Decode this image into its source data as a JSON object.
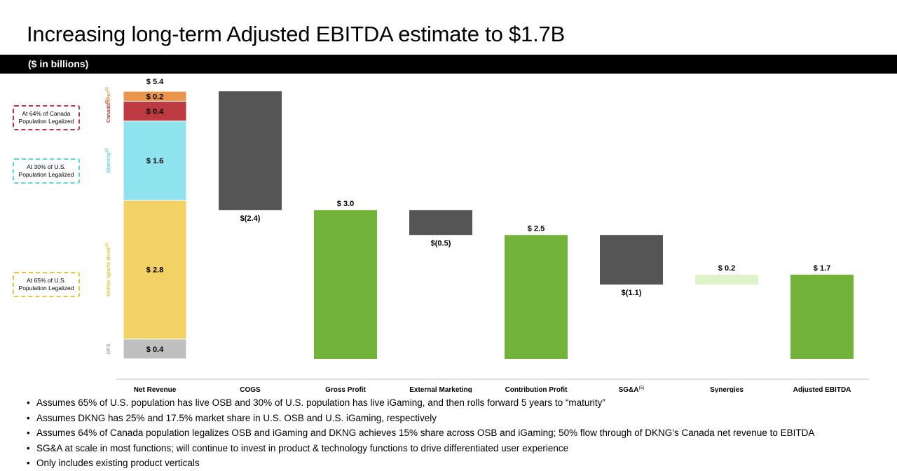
{
  "title": "Increasing long-term Adjusted EBITDA estimate to $1.7B",
  "banner": "($ in billions)",
  "callouts": [
    {
      "text": "At 64% of Canada Population Legalized",
      "color": "#b9373f"
    },
    {
      "text": "At 30% of U.S. Population Legalized",
      "color": "#5fd3de"
    },
    {
      "text": "At 65% of U.S. Population Legalized",
      "color": "#e8c23f"
    }
  ],
  "colors": {
    "positive": "#72b33a",
    "negative": "#555555",
    "synergies": "#def3c8",
    "dfs": "#bfbfbf",
    "osb": "#f2d264",
    "igaming": "#8fe3ef",
    "canada": "#bd3a40",
    "other": "#e8944a"
  },
  "chart_data": {
    "type": "bar",
    "subtype": "waterfall",
    "categories": [
      "Net Revenue",
      "COGS",
      "Gross Profit",
      "External Marketing",
      "Contribution Profit",
      "SG&A",
      "Synergies",
      "Adjusted EBITDA"
    ],
    "category_superscripts": [
      "",
      "",
      "",
      "",
      "",
      "(5)",
      "",
      ""
    ],
    "ylim": [
      0,
      5.4
    ],
    "net_revenue_stack": [
      {
        "name": "DFS",
        "value": 0.4,
        "label": "$ 0.4",
        "sup": "",
        "color": "#bfbfbf",
        "label_color": "#a6a6a6"
      },
      {
        "name": "Online Sports Book",
        "value": 2.8,
        "label": "$ 2.8",
        "sup": "(4)",
        "color": "#f2d264",
        "label_color": "#e8c23f"
      },
      {
        "name": "iGaming",
        "value": 1.6,
        "label": "$ 1.6",
        "sup": "(3)",
        "color": "#8fe3ef",
        "label_color": "#5fd3de"
      },
      {
        "name": "Canada",
        "value": 0.4,
        "label": "$ 0.4",
        "sup": "(2)",
        "color": "#bd3a40",
        "label_color": "#b9373f"
      },
      {
        "name": "Other",
        "value": 0.2,
        "label": "$ 0.2",
        "sup": "(1)",
        "color": "#e8944a",
        "label_color": "#e8944a"
      }
    ],
    "net_revenue_total_label": "$ 5.4",
    "bars": [
      {
        "category": "COGS",
        "start": 5.4,
        "end": 3.0,
        "label": "$(2.4)",
        "kind": "negative"
      },
      {
        "category": "Gross Profit",
        "start": 0,
        "end": 3.0,
        "label": "$ 3.0",
        "kind": "positive"
      },
      {
        "category": "External Marketing",
        "start": 3.0,
        "end": 2.5,
        "label": "$(0.5)",
        "kind": "negative"
      },
      {
        "category": "Contribution Profit",
        "start": 0,
        "end": 2.5,
        "label": "$ 2.5",
        "kind": "positive"
      },
      {
        "category": "SG&A",
        "start": 2.5,
        "end": 1.5,
        "label": "$(1.1)",
        "kind": "negative"
      },
      {
        "category": "Synergies",
        "start": 1.5,
        "end": 1.7,
        "label": "$ 0.2",
        "kind": "synergies"
      },
      {
        "category": "Adjusted EBITDA",
        "start": 0,
        "end": 1.7,
        "label": "$ 1.7",
        "kind": "positive"
      }
    ]
  },
  "notes": [
    "Assumes 65% of U.S. population has live OSB and 30% of U.S. population has live iGaming, and then rolls forward 5 years to “maturity”",
    "Assumes DKNG has 25% and 17.5% market share in U.S. OSB and U.S. iGaming, respectively",
    "Assumes 64% of Canada population legalizes OSB and iGaming and DKNG achieves 15% share across OSB and iGaming; 50% flow through of DKNG’s Canada net revenue to EBITDA",
    "SG&A at scale in most functions; will continue to invest in product & technology functions to drive differentiated user experience",
    "Only includes existing product verticals"
  ]
}
